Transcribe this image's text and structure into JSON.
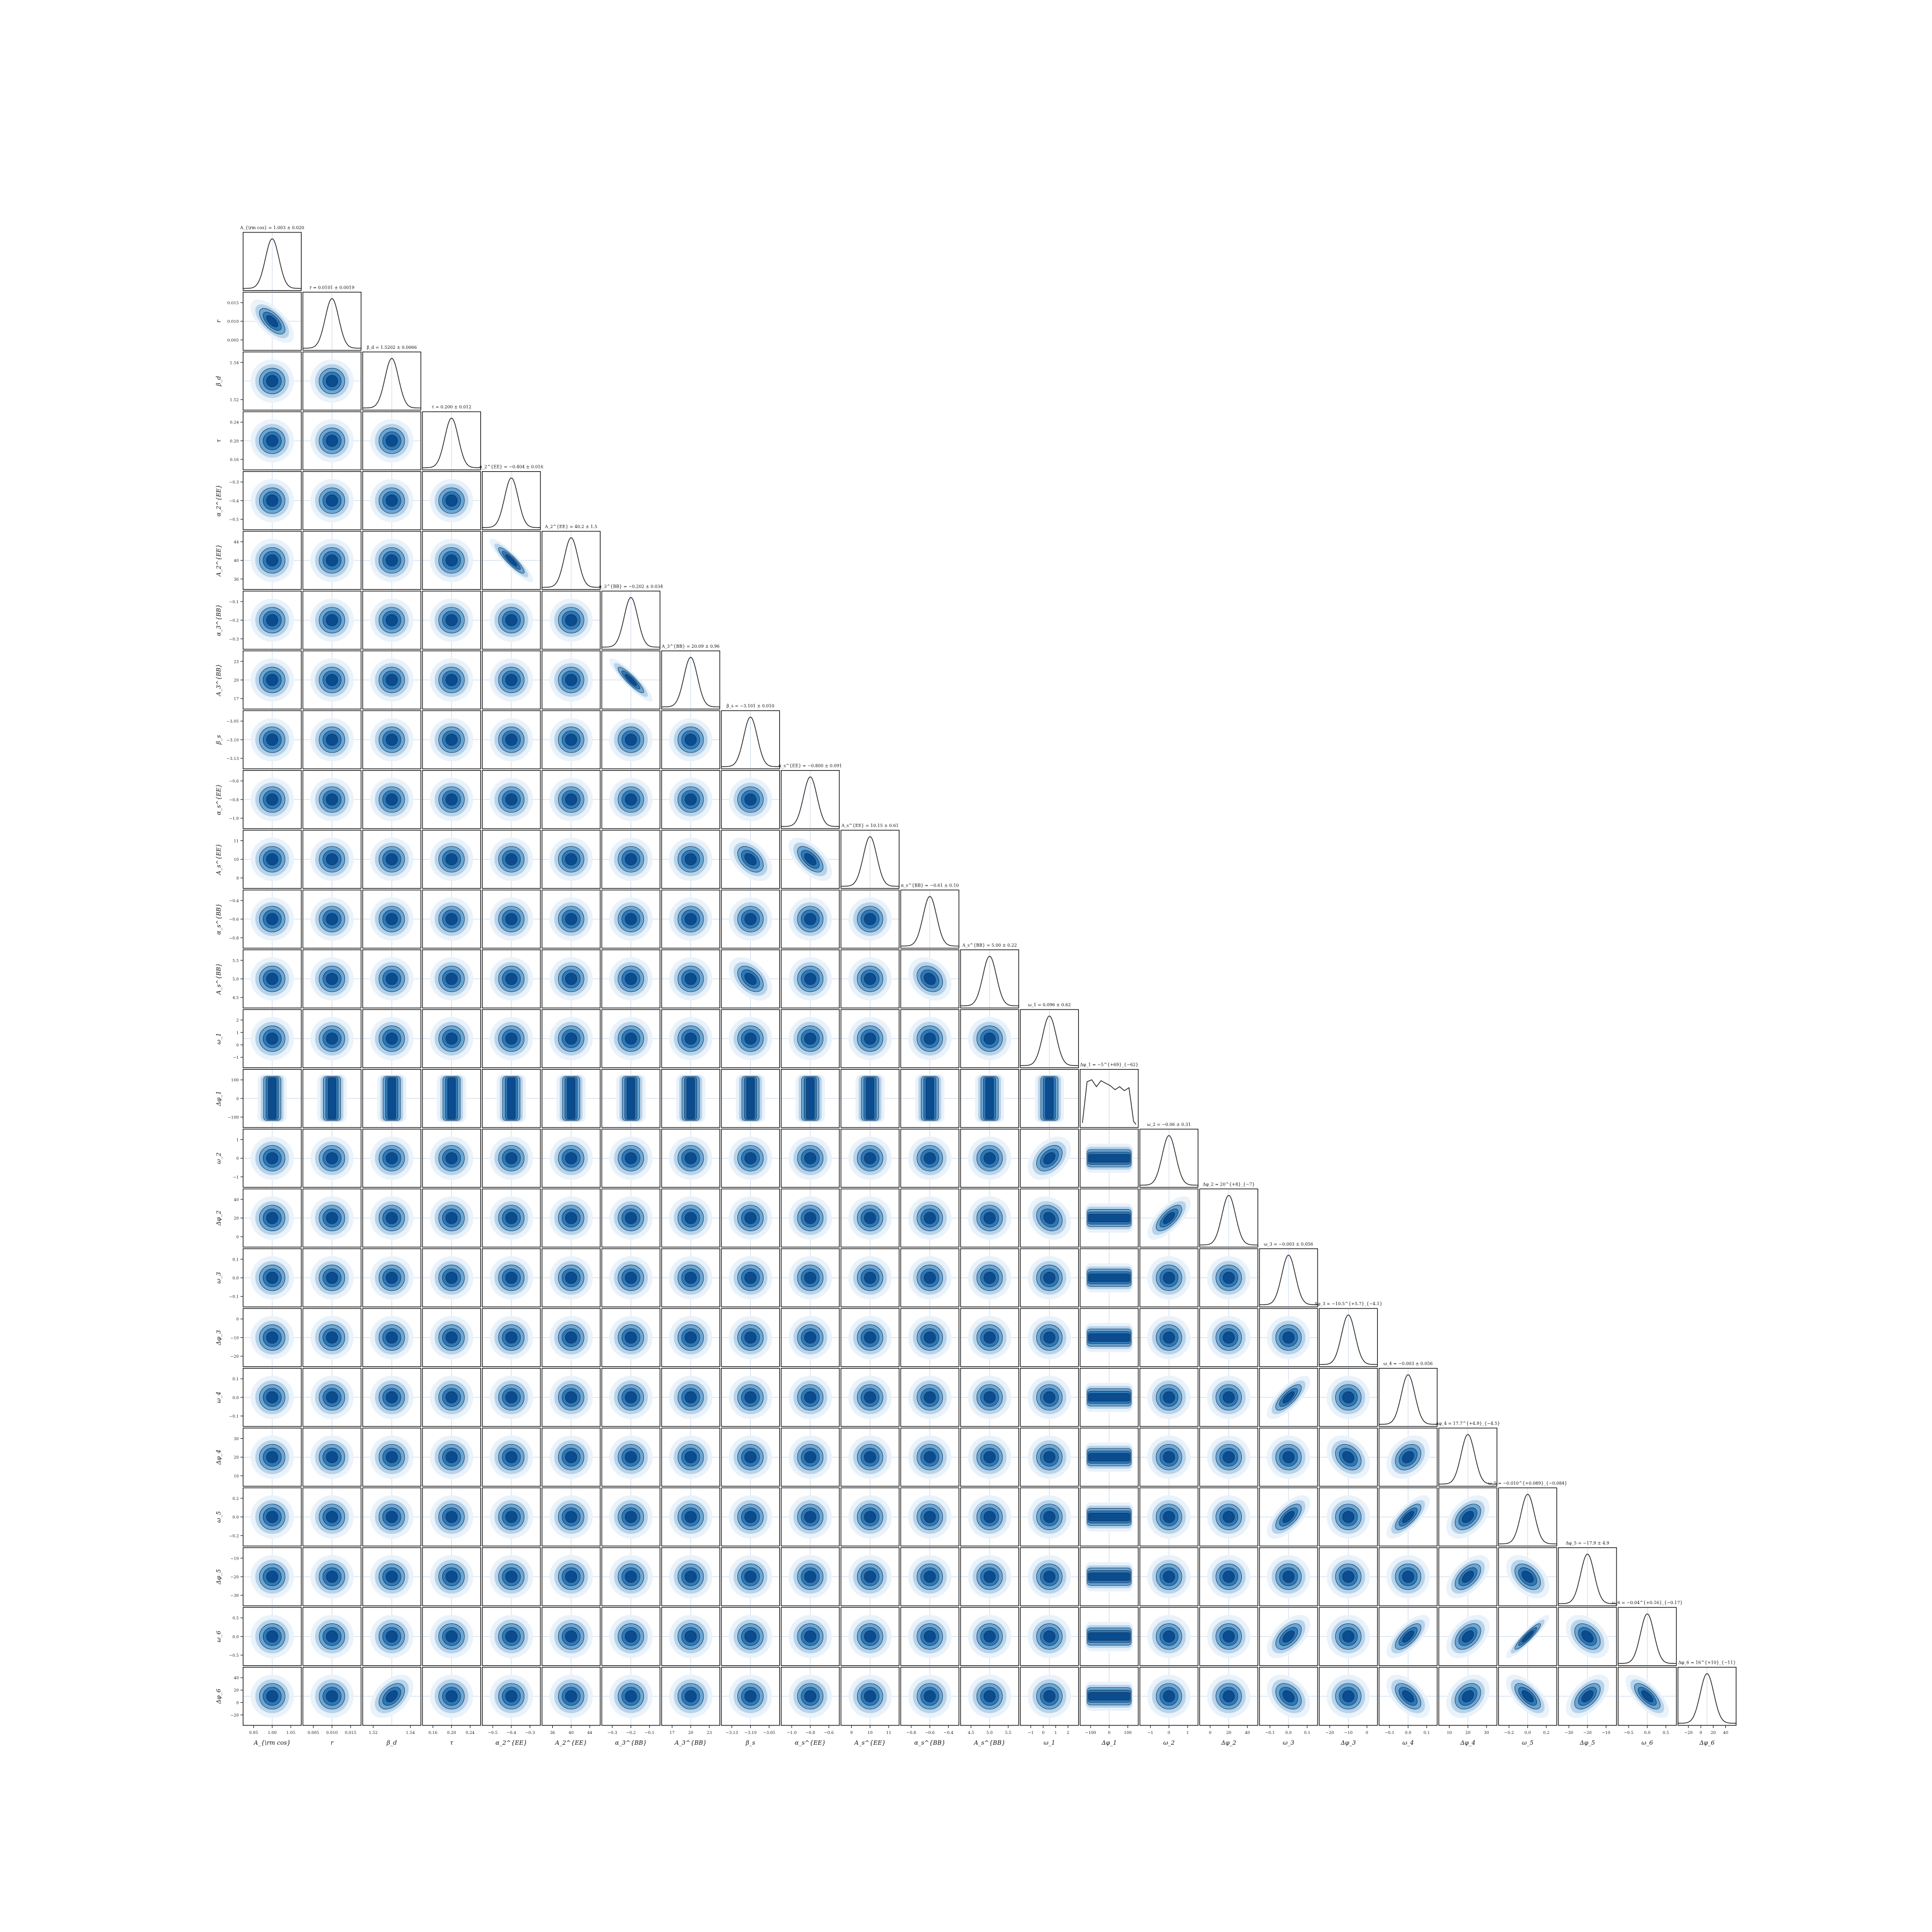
{
  "chart_data": {
    "type": "corner",
    "style": {
      "contour_colors": [
        "#eaf2fa",
        "#b7d3ea",
        "#6ca6d3",
        "#2f78b6",
        "#0b4c8f"
      ],
      "line_color": "#000000",
      "guide_color": "#9db6d6",
      "grid": false
    },
    "parameters": [
      {
        "symbol": "A_{\\rm cos}",
        "title": "A_{\\rm cos} = 1.003 ± 0.020",
        "mean": 1.003,
        "sd": 0.02,
        "ticks": [
          "0.95",
          "1.00",
          "1.05"
        ]
      },
      {
        "symbol": "r",
        "title": "r = 0.0101 ± 0.0019",
        "mean": 0.0101,
        "sd": 0.0019,
        "ticks": [
          "0.005",
          "0.010",
          "0.015"
        ]
      },
      {
        "symbol": "β_d",
        "title": "β_d = 1.5202 ± 0.0066",
        "mean": 1.5202,
        "sd": 0.0066,
        "ticks": [
          "1.52",
          "1.54"
        ]
      },
      {
        "symbol": "τ",
        "title": "τ = 0.200 ± 0.012",
        "mean": 0.2,
        "sd": 0.012,
        "ticks": [
          "0.16",
          "0.20",
          "0.24"
        ]
      },
      {
        "symbol": "α_2^{EE}",
        "title": "α_2^{EE} = −0.404 ± 0.016",
        "mean": -0.404,
        "sd": 0.016,
        "ticks": [
          "−0.5",
          "−0.4",
          "−0.3"
        ]
      },
      {
        "symbol": "A_2^{EE}",
        "title": "A_2^{EE} = 40.2 ± 1.5",
        "mean": 40.2,
        "sd": 1.5,
        "ticks": [
          "36",
          "40",
          "44"
        ]
      },
      {
        "symbol": "α_3^{BB}",
        "title": "α_3^{BB} = −0.202 ± 0.034",
        "mean": -0.202,
        "sd": 0.034,
        "ticks": [
          "−0.3",
          "−0.2",
          "−0.1"
        ]
      },
      {
        "symbol": "A_3^{BB}",
        "title": "A_3^{BB} = 20.09 ± 0.96",
        "mean": 20.09,
        "sd": 0.96,
        "ticks": [
          "17",
          "20",
          "23"
        ]
      },
      {
        "symbol": "β_s",
        "title": "β_s = −3.101 ± 0.010",
        "mean": -3.101,
        "sd": 0.01,
        "ticks": [
          "−3.13",
          "−3.10",
          "−3.05"
        ]
      },
      {
        "symbol": "α_s^{EE}",
        "title": "α_s^{EE} = −0.800 ± 0.091",
        "mean": -0.8,
        "sd": 0.091,
        "ticks": [
          "−1.0",
          "−0.8",
          "−0.6"
        ]
      },
      {
        "symbol": "A_s^{EE}",
        "title": "A_s^{EE} = 10.15 ± 0.61",
        "mean": 10.15,
        "sd": 0.61,
        "ticks": [
          "9",
          "10",
          "11"
        ]
      },
      {
        "symbol": "α_s^{BB}",
        "title": "α_s^{BB} = −0.61 ± 0.10",
        "mean": -0.61,
        "sd": 0.1,
        "ticks": [
          "−0.8",
          "−0.6",
          "−0.4"
        ]
      },
      {
        "symbol": "A_s^{BB}",
        "title": "A_s^{BB} = 5.00 ± 0.22",
        "mean": 5.0,
        "sd": 0.22,
        "ticks": [
          "4.5",
          "5.0",
          "5.5"
        ]
      },
      {
        "symbol": "ω_1",
        "title": "ω_1 = 0.096 ± 0.62",
        "mean": 0.096,
        "sd": 0.62,
        "ticks": [
          "−1",
          "0",
          "1",
          "2"
        ]
      },
      {
        "symbol": "Δφ_1",
        "title": "Δφ_1 = −5^{+69}_{−62}",
        "mean": -5,
        "sd": 62,
        "ticks": [
          "−100",
          "0",
          "100"
        ],
        "flat": true
      },
      {
        "symbol": "ω_2",
        "title": "ω_2 = −0.06 ± 0.31",
        "mean": -0.06,
        "sd": 0.31,
        "ticks": [
          "−1",
          "0",
          "1"
        ]
      },
      {
        "symbol": "Δφ_2",
        "title": "Δφ_2 = 20^{+8}_{−7}",
        "mean": 20,
        "sd": 7.5,
        "ticks": [
          "0",
          "20",
          "40"
        ]
      },
      {
        "symbol": "ω_3",
        "title": "ω_3 = −0.003 ± 0.056",
        "mean": -0.003,
        "sd": 0.056,
        "ticks": [
          "−0.1",
          "0.0",
          "0.1"
        ]
      },
      {
        "symbol": "Δφ_3",
        "title": "Δφ_3 = −10.5^{+5.7}_{−4.1}",
        "mean": -10.5,
        "sd": 4.9,
        "ticks": [
          "−20",
          "−10",
          "0"
        ]
      },
      {
        "symbol": "ω_4",
        "title": "ω_4 = −0.003 ± 0.056",
        "mean": -0.003,
        "sd": 0.056,
        "ticks": [
          "−0.1",
          "0.0",
          "0.1"
        ]
      },
      {
        "symbol": "Δφ_4",
        "title": "Δφ_4 = 17.7^{+4.9}_{−4.5}",
        "mean": 17.7,
        "sd": 4.7,
        "ticks": [
          "10",
          "20",
          "30"
        ]
      },
      {
        "symbol": "ω_5",
        "title": "ω_5 = −0.010^{+0.089}_{−0.084}",
        "mean": -0.01,
        "sd": 0.086,
        "ticks": [
          "−0.2",
          "0.0",
          "0.2"
        ]
      },
      {
        "symbol": "Δφ_5",
        "title": "Δφ_5 = −17.9 ± 4.9",
        "mean": -17.9,
        "sd": 4.9,
        "ticks": [
          "−30",
          "−20",
          "−10"
        ]
      },
      {
        "symbol": "ω_6",
        "title": "ω_6 = −0.04^{+0.16}_{−0.17}",
        "mean": -0.04,
        "sd": 0.165,
        "ticks": [
          "−0.5",
          "0.0",
          "0.5"
        ]
      },
      {
        "symbol": "Δφ_6",
        "title": "Δφ_6 = 16^{+10}_{−11}",
        "mean": 16,
        "sd": 10.5,
        "ticks": [
          "−20",
          "0",
          "20",
          "40"
        ]
      }
    ],
    "correlations": [
      {
        "i": 1,
        "j": 0,
        "rho": -0.65
      },
      {
        "i": 5,
        "j": 4,
        "rho": -0.9
      },
      {
        "i": 7,
        "j": 6,
        "rho": -0.9
      },
      {
        "i": 10,
        "j": 8,
        "rho": -0.45
      },
      {
        "i": 10,
        "j": 9,
        "rho": -0.6
      },
      {
        "i": 12,
        "j": 8,
        "rho": -0.45
      },
      {
        "i": 12,
        "j": 11,
        "rho": -0.25
      },
      {
        "i": 14,
        "j": 13,
        "rho": 0.9
      },
      {
        "i": 15,
        "j": 13,
        "rho": 0.4
      },
      {
        "i": 16,
        "j": 13,
        "rho": -0.2
      },
      {
        "i": 16,
        "j": 15,
        "rho": 0.7
      },
      {
        "i": 19,
        "j": 17,
        "rho": 0.75
      },
      {
        "i": 20,
        "j": 18,
        "rho": -0.3
      },
      {
        "i": 20,
        "j": 19,
        "rho": 0.3
      },
      {
        "i": 21,
        "j": 17,
        "rho": 0.65
      },
      {
        "i": 21,
        "j": 19,
        "rho": 0.75
      },
      {
        "i": 21,
        "j": 20,
        "rho": 0.45
      },
      {
        "i": 22,
        "j": 20,
        "rho": 0.55
      },
      {
        "i": 22,
        "j": 21,
        "rho": -0.45
      },
      {
        "i": 23,
        "j": 17,
        "rho": 0.55
      },
      {
        "i": 23,
        "j": 19,
        "rho": 0.7
      },
      {
        "i": 23,
        "j": 20,
        "rho": 0.45
      },
      {
        "i": 23,
        "j": 21,
        "rho": 0.92
      },
      {
        "i": 23,
        "j": 22,
        "rho": -0.4
      },
      {
        "i": 24,
        "j": 2,
        "rho": 0.45
      },
      {
        "i": 24,
        "j": 17,
        "rho": -0.35
      },
      {
        "i": 24,
        "j": 19,
        "rho": -0.55
      },
      {
        "i": 24,
        "j": 20,
        "rho": 0.3
      },
      {
        "i": 24,
        "j": 21,
        "rho": -0.65
      },
      {
        "i": 24,
        "j": 22,
        "rho": 0.55
      },
      {
        "i": 24,
        "j": 23,
        "rho": -0.7
      }
    ]
  }
}
